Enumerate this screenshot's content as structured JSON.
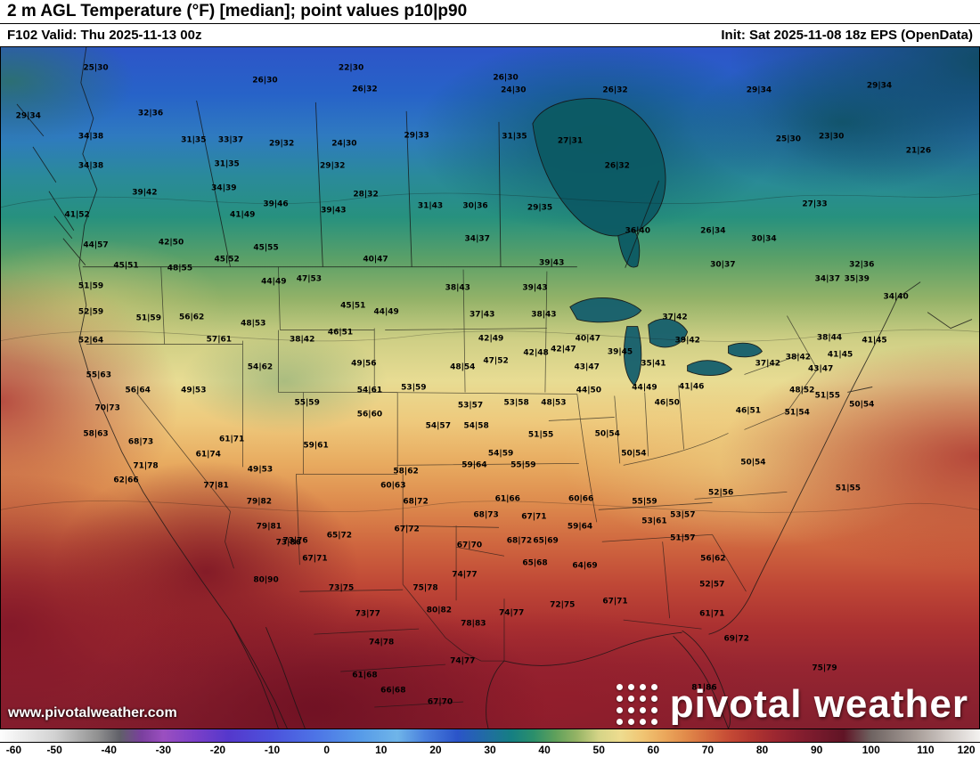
{
  "header": {
    "title": "2 m AGL Temperature (°F) [median]; point values p10|p90",
    "valid": "F102 Valid: Thu 2025-11-13 00z",
    "init": "Init: Sat 2025-11-08 18z EPS (OpenData)"
  },
  "watermark": {
    "url": "www.pivotalweather.com"
  },
  "brand": {
    "text": "pivotal weather",
    "logo_icon": "dot-grid-square",
    "color": "#ffffff"
  },
  "colorbar": {
    "min": -60,
    "max": 120,
    "ticks": [
      -60,
      -50,
      -40,
      -30,
      -20,
      -10,
      0,
      10,
      20,
      30,
      40,
      50,
      60,
      70,
      80,
      90,
      100,
      110,
      120
    ],
    "stops": [
      {
        "t": -60,
        "color": "#fdfdfd"
      },
      {
        "t": -50,
        "color": "#d2d2d2"
      },
      {
        "t": -42,
        "color": "#909090"
      },
      {
        "t": -38,
        "color": "#606068"
      },
      {
        "t": -34,
        "color": "#7a3f9e"
      },
      {
        "t": -30,
        "color": "#9b4fc0"
      },
      {
        "t": -24,
        "color": "#7a3fc8"
      },
      {
        "t": -18,
        "color": "#5538cc"
      },
      {
        "t": -10,
        "color": "#4c52dc"
      },
      {
        "t": -2,
        "color": "#4d74e6"
      },
      {
        "t": 6,
        "color": "#569ae8"
      },
      {
        "t": 13,
        "color": "#6fb5e9"
      },
      {
        "t": 18,
        "color": "#4a80dd"
      },
      {
        "t": 24,
        "color": "#2b54c9"
      },
      {
        "t": 30,
        "color": "#1f6f9e"
      },
      {
        "t": 34,
        "color": "#157f82"
      },
      {
        "t": 38,
        "color": "#2b8f6b"
      },
      {
        "t": 42,
        "color": "#5fa05b"
      },
      {
        "t": 46,
        "color": "#96b465"
      },
      {
        "t": 50,
        "color": "#d5d487"
      },
      {
        "t": 54,
        "color": "#eedc8f"
      },
      {
        "t": 58,
        "color": "#f0c573"
      },
      {
        "t": 62,
        "color": "#eba85c"
      },
      {
        "t": 66,
        "color": "#e18a4a"
      },
      {
        "t": 70,
        "color": "#d4693e"
      },
      {
        "t": 74,
        "color": "#c54a35"
      },
      {
        "t": 78,
        "color": "#b23630"
      },
      {
        "t": 82,
        "color": "#9e2830"
      },
      {
        "t": 86,
        "color": "#8a1f2f"
      },
      {
        "t": 90,
        "color": "#771a2c"
      },
      {
        "t": 95,
        "color": "#601425"
      },
      {
        "t": 100,
        "color": "#6e6361"
      },
      {
        "t": 108,
        "color": "#a59b96"
      },
      {
        "t": 114,
        "color": "#cfc8c4"
      },
      {
        "t": 120,
        "color": "#f4f2f0"
      }
    ]
  },
  "map": {
    "points": [
      {
        "v": "25|30",
        "x": 9.7,
        "y": 3.1
      },
      {
        "v": "26|30",
        "x": 27.0,
        "y": 5.0
      },
      {
        "v": "22|30",
        "x": 35.8,
        "y": 3.1
      },
      {
        "v": "26|32",
        "x": 37.2,
        "y": 6.3
      },
      {
        "v": "26|30",
        "x": 51.6,
        "y": 4.6
      },
      {
        "v": "24|30",
        "x": 52.4,
        "y": 6.4
      },
      {
        "v": "26|32",
        "x": 62.8,
        "y": 6.4
      },
      {
        "v": "29|34",
        "x": 77.5,
        "y": 6.4
      },
      {
        "v": "29|34",
        "x": 89.8,
        "y": 5.7
      },
      {
        "v": "29|34",
        "x": 2.8,
        "y": 10.2
      },
      {
        "v": "32|36",
        "x": 15.3,
        "y": 9.8
      },
      {
        "v": "34|38",
        "x": 9.2,
        "y": 13.2
      },
      {
        "v": "31|35",
        "x": 19.7,
        "y": 13.7
      },
      {
        "v": "33|37",
        "x": 23.5,
        "y": 13.7
      },
      {
        "v": "29|32",
        "x": 28.7,
        "y": 14.2
      },
      {
        "v": "24|30",
        "x": 35.1,
        "y": 14.2
      },
      {
        "v": "29|33",
        "x": 42.5,
        "y": 13.1
      },
      {
        "v": "31|35",
        "x": 52.5,
        "y": 13.2
      },
      {
        "v": "27|31",
        "x": 58.2,
        "y": 13.8
      },
      {
        "v": "25|30",
        "x": 80.5,
        "y": 13.6
      },
      {
        "v": "23|30",
        "x": 84.9,
        "y": 13.2
      },
      {
        "v": "21|26",
        "x": 93.8,
        "y": 15.3
      },
      {
        "v": "34|38",
        "x": 9.2,
        "y": 17.5
      },
      {
        "v": "31|35",
        "x": 23.1,
        "y": 17.2
      },
      {
        "v": "29|32",
        "x": 33.9,
        "y": 17.5
      },
      {
        "v": "26|32",
        "x": 63.0,
        "y": 17.5
      },
      {
        "v": "39|42",
        "x": 14.7,
        "y": 21.4
      },
      {
        "v": "34|39",
        "x": 22.8,
        "y": 20.8
      },
      {
        "v": "28|32",
        "x": 37.3,
        "y": 21.7
      },
      {
        "v": "41|52",
        "x": 7.8,
        "y": 24.7
      },
      {
        "v": "41|49",
        "x": 24.7,
        "y": 24.7
      },
      {
        "v": "39|46",
        "x": 28.1,
        "y": 23.1
      },
      {
        "v": "39|43",
        "x": 34.0,
        "y": 24.0
      },
      {
        "v": "31|43",
        "x": 43.9,
        "y": 23.4
      },
      {
        "v": "30|36",
        "x": 48.5,
        "y": 23.4
      },
      {
        "v": "29|35",
        "x": 55.1,
        "y": 23.6
      },
      {
        "v": "36|40",
        "x": 65.1,
        "y": 27.0
      },
      {
        "v": "26|34",
        "x": 72.8,
        "y": 27.0
      },
      {
        "v": "30|34",
        "x": 78.0,
        "y": 28.2
      },
      {
        "v": "27|33",
        "x": 83.2,
        "y": 23.1
      },
      {
        "v": "44|57",
        "x": 9.7,
        "y": 29.2
      },
      {
        "v": "42|50",
        "x": 17.4,
        "y": 28.7
      },
      {
        "v": "45|55",
        "x": 27.1,
        "y": 29.6
      },
      {
        "v": "40|47",
        "x": 38.3,
        "y": 31.2
      },
      {
        "v": "34|37",
        "x": 48.7,
        "y": 28.3
      },
      {
        "v": "39|43",
        "x": 56.3,
        "y": 31.7
      },
      {
        "v": "30|37",
        "x": 73.8,
        "y": 32.0
      },
      {
        "v": "32|36",
        "x": 88.0,
        "y": 32.0
      },
      {
        "v": "45|51",
        "x": 12.8,
        "y": 32.1
      },
      {
        "v": "48|55",
        "x": 18.3,
        "y": 32.5
      },
      {
        "v": "45|52",
        "x": 23.1,
        "y": 31.3
      },
      {
        "v": "44|49",
        "x": 27.9,
        "y": 34.5
      },
      {
        "v": "47|53",
        "x": 31.5,
        "y": 34.1
      },
      {
        "v": "38|43",
        "x": 46.7,
        "y": 35.4
      },
      {
        "v": "39|43",
        "x": 54.6,
        "y": 35.4
      },
      {
        "v": "34|37",
        "x": 84.5,
        "y": 34.1
      },
      {
        "v": "35|39",
        "x": 87.5,
        "y": 34.1
      },
      {
        "v": "34|40",
        "x": 91.5,
        "y": 36.7
      },
      {
        "v": "51|59",
        "x": 9.2,
        "y": 35.2
      },
      {
        "v": "52|59",
        "x": 9.2,
        "y": 39.0
      },
      {
        "v": "51|59",
        "x": 15.1,
        "y": 39.9
      },
      {
        "v": "56|62",
        "x": 19.5,
        "y": 39.7
      },
      {
        "v": "48|53",
        "x": 25.8,
        "y": 40.6
      },
      {
        "v": "45|51",
        "x": 36.0,
        "y": 38.0
      },
      {
        "v": "44|49",
        "x": 39.4,
        "y": 39.0
      },
      {
        "v": "37|43",
        "x": 49.2,
        "y": 39.3
      },
      {
        "v": "38|43",
        "x": 55.5,
        "y": 39.3
      },
      {
        "v": "37|42",
        "x": 68.9,
        "y": 39.7
      },
      {
        "v": "42|49",
        "x": 50.1,
        "y": 42.9
      },
      {
        "v": "42|48",
        "x": 54.7,
        "y": 45.0
      },
      {
        "v": "42|47",
        "x": 57.5,
        "y": 44.4
      },
      {
        "v": "40|47",
        "x": 60.0,
        "y": 42.9
      },
      {
        "v": "39|45",
        "x": 63.3,
        "y": 44.9
      },
      {
        "v": "35|41",
        "x": 66.7,
        "y": 46.6
      },
      {
        "v": "39|42",
        "x": 70.2,
        "y": 43.2
      },
      {
        "v": "38|44",
        "x": 84.7,
        "y": 42.7
      },
      {
        "v": "41|45",
        "x": 89.3,
        "y": 43.2
      },
      {
        "v": "41|45",
        "x": 85.8,
        "y": 45.2
      },
      {
        "v": "38|42",
        "x": 81.5,
        "y": 45.6
      },
      {
        "v": "37|42",
        "x": 78.4,
        "y": 46.6
      },
      {
        "v": "43|47",
        "x": 83.8,
        "y": 47.3
      },
      {
        "v": "52|64",
        "x": 9.2,
        "y": 43.2
      },
      {
        "v": "57|61",
        "x": 22.3,
        "y": 43.0
      },
      {
        "v": "38|42",
        "x": 30.8,
        "y": 43.0
      },
      {
        "v": "46|51",
        "x": 34.7,
        "y": 41.9
      },
      {
        "v": "54|62",
        "x": 26.5,
        "y": 47.1
      },
      {
        "v": "49|56",
        "x": 37.1,
        "y": 46.6
      },
      {
        "v": "48|54",
        "x": 47.2,
        "y": 47.1
      },
      {
        "v": "47|52",
        "x": 50.6,
        "y": 46.2
      },
      {
        "v": "43|47",
        "x": 59.9,
        "y": 47.1
      },
      {
        "v": "41|46",
        "x": 70.6,
        "y": 49.9
      },
      {
        "v": "44|50",
        "x": 60.1,
        "y": 50.4
      },
      {
        "v": "44|49",
        "x": 65.8,
        "y": 50.1
      },
      {
        "v": "46|50",
        "x": 68.1,
        "y": 52.3
      },
      {
        "v": "55|63",
        "x": 10.0,
        "y": 48.2
      },
      {
        "v": "56|64",
        "x": 14.0,
        "y": 50.5
      },
      {
        "v": "49|53",
        "x": 19.7,
        "y": 50.5
      },
      {
        "v": "55|59",
        "x": 31.3,
        "y": 52.3
      },
      {
        "v": "54|61",
        "x": 37.7,
        "y": 50.4
      },
      {
        "v": "53|59",
        "x": 42.2,
        "y": 50.1
      },
      {
        "v": "53|57",
        "x": 48.0,
        "y": 52.7
      },
      {
        "v": "53|58",
        "x": 52.7,
        "y": 52.3
      },
      {
        "v": "48|53",
        "x": 56.5,
        "y": 52.3
      },
      {
        "v": "48|52",
        "x": 81.9,
        "y": 50.4
      },
      {
        "v": "51|55",
        "x": 84.5,
        "y": 51.2
      },
      {
        "v": "51|54",
        "x": 81.4,
        "y": 53.7
      },
      {
        "v": "50|54",
        "x": 88.0,
        "y": 52.5
      },
      {
        "v": "46|51",
        "x": 76.4,
        "y": 53.4
      },
      {
        "v": "70|73",
        "x": 10.9,
        "y": 53.1
      },
      {
        "v": "56|60",
        "x": 37.7,
        "y": 54.0
      },
      {
        "v": "54|57",
        "x": 44.7,
        "y": 55.7
      },
      {
        "v": "54|58",
        "x": 48.6,
        "y": 55.7
      },
      {
        "v": "58|63",
        "x": 9.7,
        "y": 56.9
      },
      {
        "v": "68|73",
        "x": 14.3,
        "y": 58.0
      },
      {
        "v": "61|71",
        "x": 23.6,
        "y": 57.6
      },
      {
        "v": "59|61",
        "x": 32.2,
        "y": 58.6
      },
      {
        "v": "51|55",
        "x": 55.2,
        "y": 57.0
      },
      {
        "v": "50|54",
        "x": 62.0,
        "y": 56.9
      },
      {
        "v": "50|54",
        "x": 64.7,
        "y": 59.7
      },
      {
        "v": "54|59",
        "x": 51.1,
        "y": 59.7
      },
      {
        "v": "59|64",
        "x": 48.4,
        "y": 61.5
      },
      {
        "v": "55|59",
        "x": 53.4,
        "y": 61.5
      },
      {
        "v": "50|54",
        "x": 76.9,
        "y": 61.0
      },
      {
        "v": "71|78",
        "x": 14.8,
        "y": 61.6
      },
      {
        "v": "62|66",
        "x": 12.8,
        "y": 63.6
      },
      {
        "v": "61|74",
        "x": 21.2,
        "y": 59.9
      },
      {
        "v": "49|53",
        "x": 26.5,
        "y": 62.1
      },
      {
        "v": "77|81",
        "x": 22.0,
        "y": 64.5
      },
      {
        "v": "79|82",
        "x": 26.4,
        "y": 66.8
      },
      {
        "v": "60|63",
        "x": 40.1,
        "y": 64.5
      },
      {
        "v": "58|62",
        "x": 41.4,
        "y": 62.3
      },
      {
        "v": "68|72",
        "x": 42.4,
        "y": 66.8
      },
      {
        "v": "61|66",
        "x": 51.8,
        "y": 66.4
      },
      {
        "v": "60|66",
        "x": 59.3,
        "y": 66.4
      },
      {
        "v": "55|59",
        "x": 65.8,
        "y": 66.8
      },
      {
        "v": "52|56",
        "x": 73.6,
        "y": 65.5
      },
      {
        "v": "51|55",
        "x": 86.6,
        "y": 64.9
      },
      {
        "v": "53|57",
        "x": 69.7,
        "y": 68.8
      },
      {
        "v": "53|61",
        "x": 66.8,
        "y": 69.7
      },
      {
        "v": "51|57",
        "x": 69.7,
        "y": 72.1
      },
      {
        "v": "79|81",
        "x": 27.4,
        "y": 70.4
      },
      {
        "v": "73|76",
        "x": 30.1,
        "y": 72.6
      },
      {
        "v": "65|72",
        "x": 34.6,
        "y": 71.7
      },
      {
        "v": "67|72",
        "x": 41.5,
        "y": 70.8
      },
      {
        "v": "68|73",
        "x": 49.6,
        "y": 68.8
      },
      {
        "v": "67|71",
        "x": 54.5,
        "y": 69.0
      },
      {
        "v": "59|64",
        "x": 59.2,
        "y": 70.4
      },
      {
        "v": "56|62",
        "x": 72.8,
        "y": 75.2
      },
      {
        "v": "67|71",
        "x": 32.1,
        "y": 75.2
      },
      {
        "v": "65|69",
        "x": 55.7,
        "y": 72.6
      },
      {
        "v": "68|72",
        "x": 53.0,
        "y": 72.6
      },
      {
        "v": "67|70",
        "x": 47.9,
        "y": 73.2
      },
      {
        "v": "73|86",
        "x": 29.4,
        "y": 72.8
      },
      {
        "v": "80|90",
        "x": 27.1,
        "y": 78.3
      },
      {
        "v": "73|75",
        "x": 34.8,
        "y": 79.5
      },
      {
        "v": "75|78",
        "x": 43.4,
        "y": 79.5
      },
      {
        "v": "74|77",
        "x": 47.4,
        "y": 77.5
      },
      {
        "v": "65|68",
        "x": 54.6,
        "y": 75.8
      },
      {
        "v": "64|69",
        "x": 59.7,
        "y": 76.2
      },
      {
        "v": "72|75",
        "x": 57.4,
        "y": 81.9
      },
      {
        "v": "67|71",
        "x": 62.8,
        "y": 81.5
      },
      {
        "v": "74|77",
        "x": 52.2,
        "y": 83.2
      },
      {
        "v": "80|82",
        "x": 44.8,
        "y": 82.8
      },
      {
        "v": "78|83",
        "x": 48.3,
        "y": 84.7
      },
      {
        "v": "61|71",
        "x": 72.7,
        "y": 83.3
      },
      {
        "v": "52|57",
        "x": 72.7,
        "y": 78.9
      },
      {
        "v": "69|72",
        "x": 75.2,
        "y": 86.9
      },
      {
        "v": "73|77",
        "x": 37.5,
        "y": 83.3
      },
      {
        "v": "74|78",
        "x": 38.9,
        "y": 87.5
      },
      {
        "v": "74|77",
        "x": 47.2,
        "y": 90.2
      },
      {
        "v": "61|68",
        "x": 37.2,
        "y": 92.3
      },
      {
        "v": "66|68",
        "x": 40.1,
        "y": 94.5
      },
      {
        "v": "67|70",
        "x": 44.9,
        "y": 96.2
      },
      {
        "v": "75|79",
        "x": 84.2,
        "y": 91.3
      },
      {
        "v": "81|86",
        "x": 71.9,
        "y": 94.1
      }
    ]
  }
}
